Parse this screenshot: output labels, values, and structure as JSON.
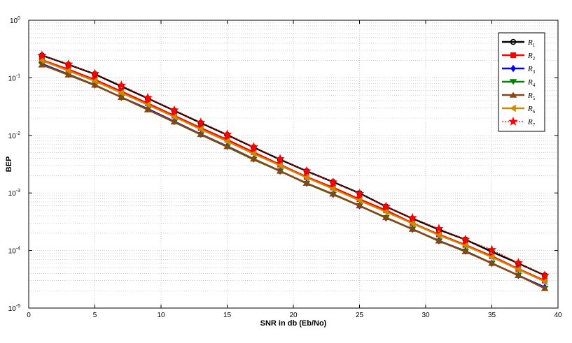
{
  "chart_data": {
    "type": "line",
    "title": "",
    "xlabel": "SNR in db (Eb/No)",
    "ylabel": "BEP",
    "xlim": [
      0,
      40
    ],
    "ylim": [
      1e-05,
      1
    ],
    "yscale": "log",
    "grid": true,
    "legend_position": "top-right",
    "x_ticks": [
      "0",
      "5",
      "10",
      "15",
      "20",
      "25",
      "30",
      "35",
      "40"
    ],
    "y_ticks": [
      {
        "base": "10",
        "exp": "0"
      },
      {
        "base": "10",
        "exp": "-1"
      },
      {
        "base": "10",
        "exp": "-2"
      },
      {
        "base": "10",
        "exp": "-3"
      },
      {
        "base": "10",
        "exp": "-4"
      },
      {
        "base": "10",
        "exp": "-5"
      }
    ],
    "x": [
      1,
      3,
      5,
      7,
      9,
      11,
      13,
      15,
      17,
      19,
      21,
      23,
      25,
      27,
      29,
      31,
      33,
      35,
      37,
      39
    ],
    "series": [
      {
        "name": "R",
        "sub": "1",
        "color": "#000000",
        "marker": "circle",
        "dash": false,
        "values": [
          0.245,
          0.17,
          0.116,
          0.071,
          0.044,
          0.027,
          0.0165,
          0.0102,
          0.0062,
          0.0038,
          0.0024,
          0.00155,
          0.00099,
          0.00058,
          0.00036,
          0.00023,
          0.000155,
          9.5e-05,
          6e-05,
          3.7e-05
        ]
      },
      {
        "name": "R",
        "sub": "2",
        "color": "#ff0000",
        "marker": "square",
        "dash": false,
        "values": [
          0.205,
          0.14,
          0.093,
          0.058,
          0.036,
          0.022,
          0.0135,
          0.0084,
          0.0051,
          0.0031,
          0.0019,
          0.00124,
          0.00078,
          0.0005,
          0.0003,
          0.00019,
          0.000125,
          8e-05,
          4.8e-05,
          3e-05
        ]
      },
      {
        "name": "R",
        "sub": "3",
        "color": "#0000ff",
        "marker": "diamond",
        "dash": false,
        "values": [
          0.175,
          0.115,
          0.075,
          0.046,
          0.029,
          0.0175,
          0.0105,
          0.0065,
          0.0039,
          0.0024,
          0.00148,
          0.00095,
          0.0006,
          0.00037,
          0.000235,
          0.000148,
          9.8e-05,
          6e-05,
          3.7e-05,
          2.3e-05
        ]
      },
      {
        "name": "R",
        "sub": "4",
        "color": "#008000",
        "marker": "triangle-down",
        "dash": false,
        "values": [
          0.17,
          0.112,
          0.074,
          0.046,
          0.028,
          0.017,
          0.0103,
          0.0063,
          0.0038,
          0.0024,
          0.00146,
          0.00094,
          0.0006,
          0.00037,
          0.000235,
          0.000146,
          9.7e-05,
          6e-05,
          3.7e-05,
          2.2e-05
        ]
      },
      {
        "name": "R",
        "sub": "5",
        "color": "#8b4513",
        "marker": "triangle-up",
        "dash": false,
        "values": [
          0.168,
          0.113,
          0.075,
          0.046,
          0.028,
          0.0172,
          0.0104,
          0.0064,
          0.0039,
          0.0024,
          0.00148,
          0.00096,
          0.0006,
          0.000375,
          0.000235,
          0.000147,
          9.6e-05,
          6e-05,
          3.7e-05,
          2.2e-05
        ]
      },
      {
        "name": "R",
        "sub": "6",
        "color": "#cc8800",
        "marker": "triangle-left",
        "dash": false,
        "values": [
          0.2,
          0.133,
          0.088,
          0.055,
          0.034,
          0.021,
          0.0128,
          0.0079,
          0.0048,
          0.003,
          0.00185,
          0.00118,
          0.00074,
          0.00047,
          0.000295,
          0.000185,
          0.000122,
          7.7e-05,
          4.7e-05,
          2.9e-05
        ]
      },
      {
        "name": "R",
        "sub": "7",
        "color": "#ff0000",
        "marker": "star",
        "dash": true,
        "values": [
          0.245,
          0.172,
          0.118,
          0.074,
          0.045,
          0.0275,
          0.0168,
          0.0104,
          0.0063,
          0.0039,
          0.0024,
          0.00154,
          0.00097,
          0.00058,
          0.00037,
          0.00024,
          0.000155,
          0.000103,
          6.1e-05,
          3.7e-05
        ]
      }
    ]
  }
}
